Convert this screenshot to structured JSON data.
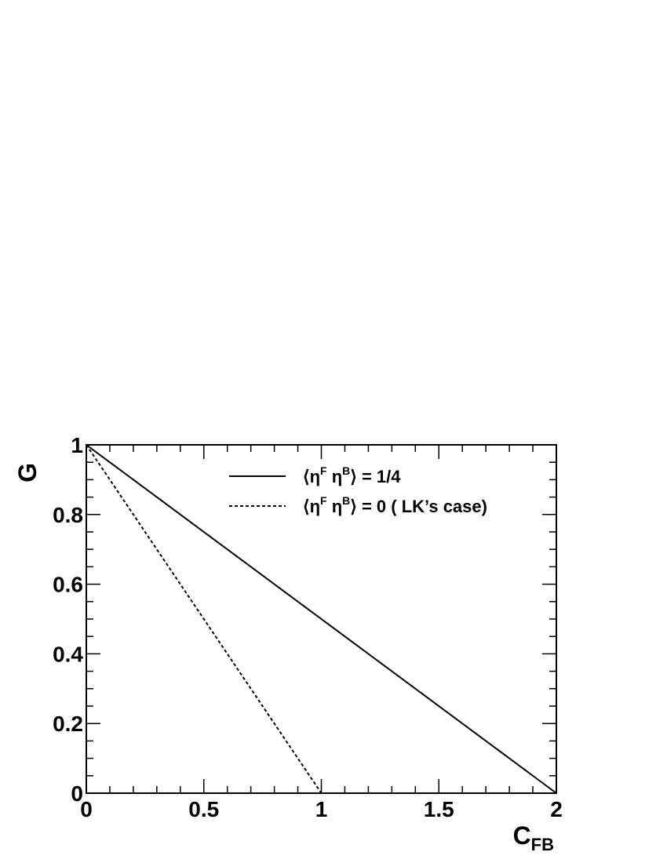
{
  "chart_data": {
    "type": "line",
    "xlabel": "C",
    "xlabel_sub": "FB",
    "ylabel": "G",
    "xlim": [
      0,
      2
    ],
    "ylim": [
      0,
      1
    ],
    "x_ticks": [
      "0",
      "0.5",
      "1",
      "1.5",
      "2"
    ],
    "y_ticks": [
      "0",
      "0.2",
      "0.4",
      "0.6",
      "0.8",
      "1"
    ],
    "grid": false,
    "legend_position": "top",
    "series": [
      {
        "name": "⟨η^F η^B⟩ = 1/4",
        "style": "solid",
        "x": [
          0,
          2
        ],
        "y": [
          1,
          0
        ]
      },
      {
        "name": "⟨η^F η^B⟩ = 0 ( LK’s case)",
        "style": "dashed",
        "x": [
          0,
          1
        ],
        "y": [
          1,
          0
        ]
      }
    ]
  },
  "legend": {
    "entry1": {
      "open": "⟨η",
      "sup1": "F",
      "mid": " η",
      "sup2": "B",
      "close": "⟩ = 1/4"
    },
    "entry2": {
      "open": "⟨η",
      "sup1": "F",
      "mid": " η",
      "sup2": "B",
      "close": "⟩ = 0 ( LK’s case)"
    }
  }
}
